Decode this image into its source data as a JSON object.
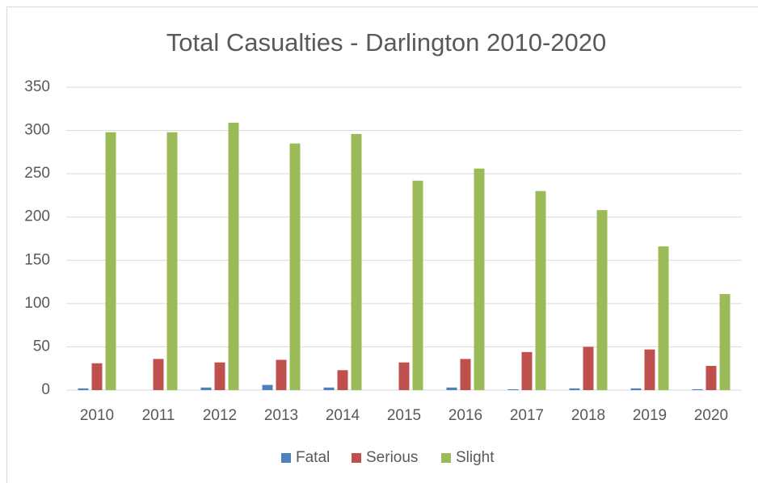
{
  "chart_data": {
    "type": "bar",
    "title": "Total Casualties - Darlington 2010-2020",
    "categories": [
      "2010",
      "2011",
      "2012",
      "2013",
      "2014",
      "2015",
      "2016",
      "2017",
      "2018",
      "2019",
      "2020"
    ],
    "series": [
      {
        "name": "Fatal",
        "color": "#4f81bd",
        "values": [
          2,
          0,
          3,
          6,
          3,
          0,
          3,
          1,
          2,
          2,
          1
        ]
      },
      {
        "name": "Serious",
        "color": "#c0504d",
        "values": [
          31,
          36,
          32,
          35,
          23,
          32,
          36,
          44,
          50,
          47,
          28
        ]
      },
      {
        "name": "Slight",
        "color": "#9bbb59",
        "values": [
          298,
          298,
          309,
          285,
          296,
          242,
          256,
          230,
          208,
          166,
          111
        ]
      }
    ],
    "ylim": [
      0,
      350
    ],
    "yticks": [
      0,
      50,
      100,
      150,
      200,
      250,
      300,
      350
    ],
    "grid": true,
    "legend": "bottom"
  }
}
